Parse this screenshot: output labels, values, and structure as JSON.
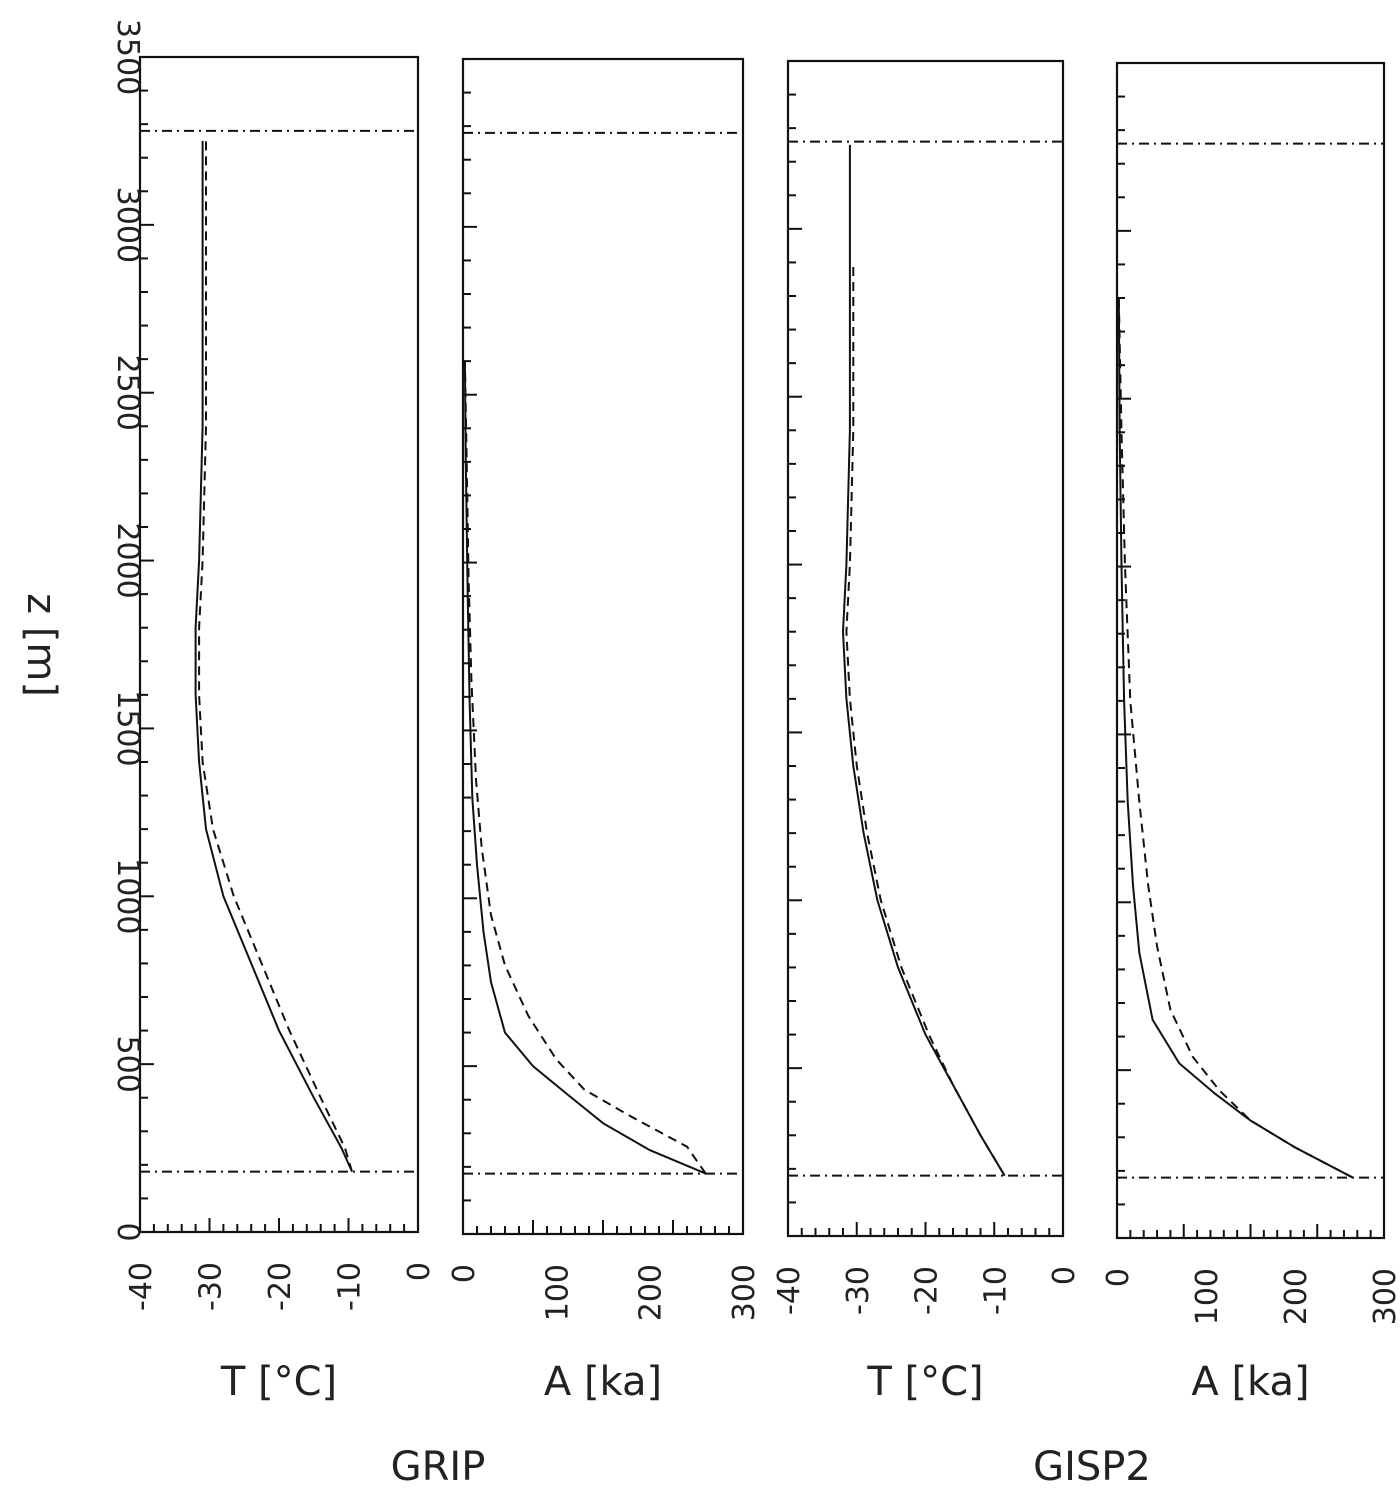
{
  "chart_data": [
    {
      "type": "line",
      "panel": "GRIP temperature",
      "xlabel": "T [°C]",
      "ylabel": "z [m]",
      "xlim": [
        -40,
        0
      ],
      "ylim": [
        0,
        3500
      ],
      "xticks": [
        "-40",
        "-30",
        "-20",
        "-10",
        "0"
      ],
      "yticks": [
        "0",
        "500",
        "1000",
        "1500",
        "2000",
        "2500",
        "3000",
        "3500"
      ],
      "reference_lines_z": [
        180,
        3280
      ],
      "series": [
        {
          "style": "solid",
          "x": [
            -9.5,
            -11,
            -15,
            -20,
            -24,
            -28,
            -30.5,
            -31.5,
            -32,
            -32,
            -31.5,
            -31,
            -31,
            -31
          ],
          "y": [
            180,
            250,
            400,
            600,
            800,
            1000,
            1200,
            1400,
            1600,
            1800,
            2000,
            2400,
            2800,
            3250
          ]
        },
        {
          "style": "dashed",
          "x": [
            -9.5,
            -10.5,
            -14,
            -18.5,
            -22.5,
            -26.5,
            -29.5,
            -31,
            -31.5,
            -31.5,
            -31,
            -30.5,
            -30.5,
            -30.5
          ],
          "y": [
            180,
            250,
            400,
            600,
            800,
            1000,
            1200,
            1400,
            1600,
            1800,
            2000,
            2400,
            2800,
            3250
          ]
        }
      ]
    },
    {
      "type": "line",
      "panel": "GRIP age",
      "xlabel": "A [ka]",
      "xlim": [
        0,
        300
      ],
      "ylim": [
        0,
        3500
      ],
      "xticks": [
        "0",
        "100",
        "200",
        "300"
      ],
      "reference_lines_z": [
        180,
        3280
      ],
      "series": [
        {
          "style": "solid",
          "x": [
            260,
            200,
            150,
            110,
            75,
            45,
            30,
            22,
            15,
            10,
            7,
            5,
            3,
            2
          ],
          "y": [
            180,
            250,
            330,
            420,
            500,
            600,
            750,
            900,
            1100,
            1300,
            1600,
            1900,
            2300,
            2600
          ]
        },
        {
          "style": "dashed",
          "x": [
            260,
            240,
            180,
            130,
            100,
            70,
            45,
            30,
            20,
            14,
            9,
            6,
            4,
            2
          ],
          "y": [
            180,
            260,
            350,
            430,
            520,
            650,
            800,
            950,
            1150,
            1350,
            1650,
            1950,
            2300,
            2600
          ]
        }
      ]
    },
    {
      "type": "line",
      "panel": "GISP2 temperature",
      "xlabel": "T [°C]",
      "xlim": [
        -40,
        0
      ],
      "ylim": [
        0,
        3500
      ],
      "xticks": [
        "-40",
        "-30",
        "-20",
        "-10",
        "0"
      ],
      "reference_lines_z": [
        180,
        3260
      ],
      "series": [
        {
          "style": "solid",
          "x": [
            -8.5,
            -12,
            -16,
            -20,
            -24,
            -27,
            -29,
            -30.5,
            -31.5,
            -32,
            -31.5,
            -31,
            -31,
            -31
          ],
          "y": [
            180,
            300,
            450,
            600,
            800,
            1000,
            1200,
            1400,
            1600,
            1800,
            2000,
            2400,
            2800,
            3250
          ]
        },
        {
          "style": "dashed",
          "x": [
            -8.5,
            -12,
            -16,
            -19.5,
            -23.5,
            -26.5,
            -28.5,
            -30,
            -31,
            -31.5,
            -31,
            -30.5,
            -30.5
          ],
          "y": [
            180,
            300,
            450,
            600,
            800,
            1000,
            1200,
            1400,
            1600,
            1800,
            2000,
            2400,
            2900
          ]
        }
      ]
    },
    {
      "type": "line",
      "panel": "GISP2 age",
      "xlabel": "A [ka]",
      "xlim": [
        0,
        300
      ],
      "ylim": [
        0,
        3500
      ],
      "xticks": [
        "0",
        "100",
        "200",
        "300"
      ],
      "reference_lines_z": [
        180,
        3260
      ],
      "series": [
        {
          "style": "solid",
          "x": [
            265,
            200,
            150,
            110,
            70,
            40,
            25,
            18,
            12,
            8,
            5,
            3,
            2
          ],
          "y": [
            180,
            270,
            350,
            430,
            520,
            650,
            850,
            1050,
            1300,
            1600,
            2000,
            2400,
            2800
          ]
        },
        {
          "style": "dashed",
          "x": [
            265,
            200,
            150,
            115,
            85,
            60,
            45,
            35,
            25,
            15,
            9,
            5,
            2
          ],
          "y": [
            180,
            270,
            350,
            440,
            540,
            680,
            870,
            1050,
            1300,
            1600,
            2000,
            2400,
            2800
          ]
        }
      ]
    }
  ],
  "site_labels": [
    "GRIP",
    "GISP2"
  ]
}
